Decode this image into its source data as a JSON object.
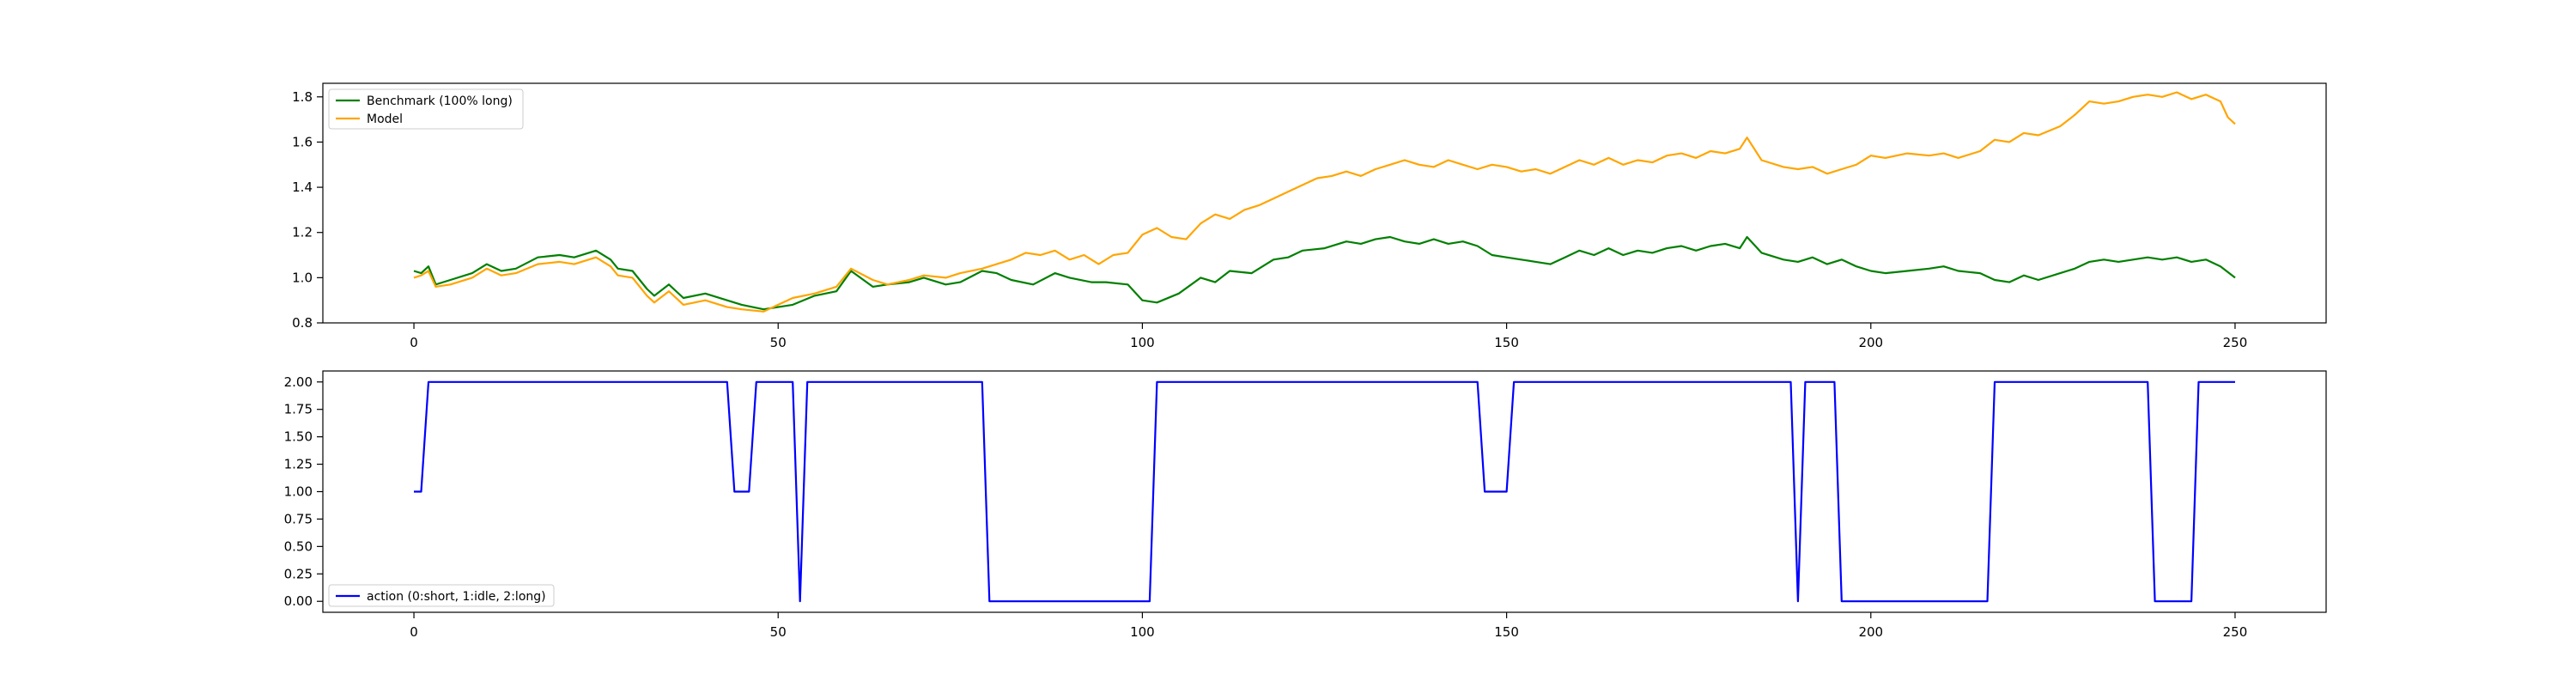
{
  "chart_data": [
    {
      "type": "line",
      "x_ticks": [
        0,
        50,
        100,
        150,
        200,
        250
      ],
      "y_ticks": [
        "0.8",
        "1.0",
        "1.2",
        "1.4",
        "1.6",
        "1.8"
      ],
      "xlim": [
        -12.5,
        262.5
      ],
      "ylim": [
        0.8,
        1.86
      ],
      "grid": false,
      "legend_position": "upper left",
      "series": [
        {
          "name": "Benchmark (100% long)",
          "color": "#008000",
          "points": [
            [
              0,
              1.03
            ],
            [
              1,
              1.02
            ],
            [
              2,
              1.05
            ],
            [
              3,
              0.97
            ],
            [
              5,
              0.99
            ],
            [
              8,
              1.02
            ],
            [
              10,
              1.06
            ],
            [
              12,
              1.03
            ],
            [
              14,
              1.04
            ],
            [
              17,
              1.09
            ],
            [
              20,
              1.1
            ],
            [
              22,
              1.09
            ],
            [
              25,
              1.12
            ],
            [
              27,
              1.08
            ],
            [
              28,
              1.04
            ],
            [
              30,
              1.03
            ],
            [
              32,
              0.95
            ],
            [
              33,
              0.92
            ],
            [
              35,
              0.97
            ],
            [
              37,
              0.91
            ],
            [
              40,
              0.93
            ],
            [
              43,
              0.9
            ],
            [
              45,
              0.88
            ],
            [
              48,
              0.86
            ],
            [
              50,
              0.87
            ],
            [
              52,
              0.88
            ],
            [
              55,
              0.92
            ],
            [
              58,
              0.94
            ],
            [
              60,
              1.03
            ],
            [
              63,
              0.96
            ],
            [
              65,
              0.97
            ],
            [
              68,
              0.98
            ],
            [
              70,
              1.0
            ],
            [
              73,
              0.97
            ],
            [
              75,
              0.98
            ],
            [
              78,
              1.03
            ],
            [
              80,
              1.02
            ],
            [
              82,
              0.99
            ],
            [
              85,
              0.97
            ],
            [
              88,
              1.02
            ],
            [
              90,
              1.0
            ],
            [
              93,
              0.98
            ],
            [
              95,
              0.98
            ],
            [
              98,
              0.97
            ],
            [
              100,
              0.9
            ],
            [
              102,
              0.89
            ],
            [
              105,
              0.93
            ],
            [
              108,
              1.0
            ],
            [
              110,
              0.98
            ],
            [
              112,
              1.03
            ],
            [
              115,
              1.02
            ],
            [
              118,
              1.08
            ],
            [
              120,
              1.09
            ],
            [
              122,
              1.12
            ],
            [
              125,
              1.13
            ],
            [
              128,
              1.16
            ],
            [
              130,
              1.15
            ],
            [
              132,
              1.17
            ],
            [
              134,
              1.18
            ],
            [
              136,
              1.16
            ],
            [
              138,
              1.15
            ],
            [
              140,
              1.17
            ],
            [
              142,
              1.15
            ],
            [
              144,
              1.16
            ],
            [
              146,
              1.14
            ],
            [
              148,
              1.1
            ],
            [
              150,
              1.09
            ],
            [
              152,
              1.08
            ],
            [
              154,
              1.07
            ],
            [
              156,
              1.06
            ],
            [
              158,
              1.09
            ],
            [
              160,
              1.12
            ],
            [
              162,
              1.1
            ],
            [
              164,
              1.13
            ],
            [
              166,
              1.1
            ],
            [
              168,
              1.12
            ],
            [
              170,
              1.11
            ],
            [
              172,
              1.13
            ],
            [
              174,
              1.14
            ],
            [
              176,
              1.12
            ],
            [
              178,
              1.14
            ],
            [
              180,
              1.15
            ],
            [
              182,
              1.13
            ],
            [
              183,
              1.18
            ],
            [
              185,
              1.11
            ],
            [
              188,
              1.08
            ],
            [
              190,
              1.07
            ],
            [
              192,
              1.09
            ],
            [
              194,
              1.06
            ],
            [
              196,
              1.08
            ],
            [
              198,
              1.05
            ],
            [
              200,
              1.03
            ],
            [
              202,
              1.02
            ],
            [
              205,
              1.03
            ],
            [
              208,
              1.04
            ],
            [
              210,
              1.05
            ],
            [
              212,
              1.03
            ],
            [
              215,
              1.02
            ],
            [
              217,
              0.99
            ],
            [
              219,
              0.98
            ],
            [
              221,
              1.01
            ],
            [
              223,
              0.99
            ],
            [
              226,
              1.02
            ],
            [
              228,
              1.04
            ],
            [
              230,
              1.07
            ],
            [
              232,
              1.08
            ],
            [
              234,
              1.07
            ],
            [
              236,
              1.08
            ],
            [
              238,
              1.09
            ],
            [
              240,
              1.08
            ],
            [
              242,
              1.09
            ],
            [
              244,
              1.07
            ],
            [
              246,
              1.08
            ],
            [
              248,
              1.05
            ],
            [
              250,
              1.0
            ]
          ]
        },
        {
          "name": "Model",
          "color": "#FFA500",
          "points": [
            [
              0,
              1.0
            ],
            [
              1,
              1.01
            ],
            [
              2,
              1.03
            ],
            [
              3,
              0.96
            ],
            [
              5,
              0.97
            ],
            [
              8,
              1.0
            ],
            [
              10,
              1.04
            ],
            [
              12,
              1.01
            ],
            [
              14,
              1.02
            ],
            [
              17,
              1.06
            ],
            [
              20,
              1.07
            ],
            [
              22,
              1.06
            ],
            [
              25,
              1.09
            ],
            [
              27,
              1.05
            ],
            [
              28,
              1.01
            ],
            [
              30,
              1.0
            ],
            [
              32,
              0.92
            ],
            [
              33,
              0.89
            ],
            [
              35,
              0.94
            ],
            [
              37,
              0.88
            ],
            [
              40,
              0.9
            ],
            [
              43,
              0.87
            ],
            [
              45,
              0.86
            ],
            [
              48,
              0.85
            ],
            [
              50,
              0.88
            ],
            [
              52,
              0.91
            ],
            [
              55,
              0.93
            ],
            [
              58,
              0.96
            ],
            [
              60,
              1.04
            ],
            [
              63,
              0.99
            ],
            [
              65,
              0.97
            ],
            [
              68,
              0.99
            ],
            [
              70,
              1.01
            ],
            [
              73,
              1.0
            ],
            [
              75,
              1.02
            ],
            [
              78,
              1.04
            ],
            [
              80,
              1.06
            ],
            [
              82,
              1.08
            ],
            [
              84,
              1.11
            ],
            [
              86,
              1.1
            ],
            [
              88,
              1.12
            ],
            [
              90,
              1.08
            ],
            [
              92,
              1.1
            ],
            [
              94,
              1.06
            ],
            [
              96,
              1.1
            ],
            [
              98,
              1.11
            ],
            [
              100,
              1.19
            ],
            [
              102,
              1.22
            ],
            [
              104,
              1.18
            ],
            [
              106,
              1.17
            ],
            [
              108,
              1.24
            ],
            [
              110,
              1.28
            ],
            [
              112,
              1.26
            ],
            [
              114,
              1.3
            ],
            [
              116,
              1.32
            ],
            [
              118,
              1.35
            ],
            [
              120,
              1.38
            ],
            [
              122,
              1.41
            ],
            [
              124,
              1.44
            ],
            [
              126,
              1.45
            ],
            [
              128,
              1.47
            ],
            [
              130,
              1.45
            ],
            [
              132,
              1.48
            ],
            [
              134,
              1.5
            ],
            [
              136,
              1.52
            ],
            [
              138,
              1.5
            ],
            [
              140,
              1.49
            ],
            [
              142,
              1.52
            ],
            [
              144,
              1.5
            ],
            [
              146,
              1.48
            ],
            [
              148,
              1.5
            ],
            [
              150,
              1.49
            ],
            [
              152,
              1.47
            ],
            [
              154,
              1.48
            ],
            [
              156,
              1.46
            ],
            [
              158,
              1.49
            ],
            [
              160,
              1.52
            ],
            [
              162,
              1.5
            ],
            [
              164,
              1.53
            ],
            [
              166,
              1.5
            ],
            [
              168,
              1.52
            ],
            [
              170,
              1.51
            ],
            [
              172,
              1.54
            ],
            [
              174,
              1.55
            ],
            [
              176,
              1.53
            ],
            [
              178,
              1.56
            ],
            [
              180,
              1.55
            ],
            [
              182,
              1.57
            ],
            [
              183,
              1.62
            ],
            [
              185,
              1.52
            ],
            [
              188,
              1.49
            ],
            [
              190,
              1.48
            ],
            [
              192,
              1.49
            ],
            [
              194,
              1.46
            ],
            [
              196,
              1.48
            ],
            [
              198,
              1.5
            ],
            [
              200,
              1.54
            ],
            [
              202,
              1.53
            ],
            [
              205,
              1.55
            ],
            [
              208,
              1.54
            ],
            [
              210,
              1.55
            ],
            [
              212,
              1.53
            ],
            [
              215,
              1.56
            ],
            [
              217,
              1.61
            ],
            [
              219,
              1.6
            ],
            [
              221,
              1.64
            ],
            [
              223,
              1.63
            ],
            [
              226,
              1.67
            ],
            [
              228,
              1.72
            ],
            [
              230,
              1.78
            ],
            [
              232,
              1.77
            ],
            [
              234,
              1.78
            ],
            [
              236,
              1.8
            ],
            [
              238,
              1.81
            ],
            [
              240,
              1.8
            ],
            [
              242,
              1.82
            ],
            [
              244,
              1.79
            ],
            [
              246,
              1.81
            ],
            [
              248,
              1.78
            ],
            [
              249,
              1.71
            ],
            [
              250,
              1.68
            ]
          ]
        }
      ]
    },
    {
      "type": "line",
      "x_ticks": [
        0,
        50,
        100,
        150,
        200,
        250
      ],
      "y_ticks": [
        "0.00",
        "0.25",
        "0.50",
        "0.75",
        "1.00",
        "1.25",
        "1.50",
        "1.75",
        "2.00"
      ],
      "xlim": [
        -12.5,
        262.5
      ],
      "ylim": [
        -0.1,
        2.1
      ],
      "grid": false,
      "legend_position": "lower left",
      "series": [
        {
          "name": "action (0:short, 1:idle, 2:long)",
          "color": "#0000FF",
          "points": [
            [
              0,
              1
            ],
            [
              1,
              1
            ],
            [
              2,
              2
            ],
            [
              43,
              2
            ],
            [
              44,
              1
            ],
            [
              46,
              1
            ],
            [
              47,
              2
            ],
            [
              52,
              2
            ],
            [
              53,
              0
            ],
            [
              54,
              2
            ],
            [
              78,
              2
            ],
            [
              79,
              0
            ],
            [
              101,
              0
            ],
            [
              102,
              2
            ],
            [
              146,
              2
            ],
            [
              147,
              1
            ],
            [
              150,
              1
            ],
            [
              151,
              2
            ],
            [
              189,
              2
            ],
            [
              190,
              0
            ],
            [
              191,
              2
            ],
            [
              195,
              2
            ],
            [
              196,
              0
            ],
            [
              216,
              0
            ],
            [
              217,
              2
            ],
            [
              238,
              2
            ],
            [
              239,
              0
            ],
            [
              244,
              0
            ],
            [
              245,
              2
            ],
            [
              250,
              2
            ]
          ]
        }
      ]
    }
  ]
}
